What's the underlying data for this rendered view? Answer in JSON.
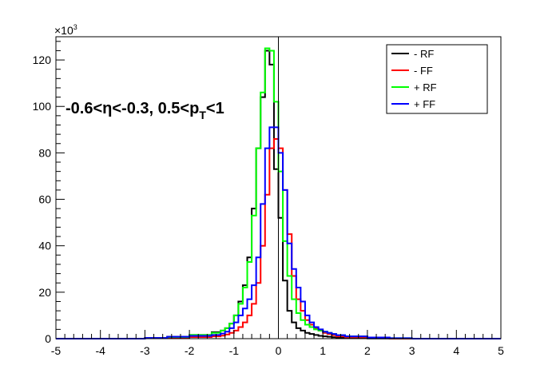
{
  "chart_data": {
    "type": "step",
    "xlim": [
      -5,
      5
    ],
    "ylim": [
      0,
      130
    ],
    "y_multiplier_label": "×10",
    "y_multiplier_exp": "3",
    "xticks": [
      "-5",
      "-4",
      "-3",
      "-2",
      "-1",
      "0",
      "1",
      "2",
      "3",
      "4",
      "5"
    ],
    "xtick_values": [
      -5,
      -4,
      -3,
      -2,
      -1,
      0,
      1,
      2,
      3,
      4,
      5
    ],
    "yticks": [
      "0",
      "20",
      "40",
      "60",
      "80",
      "100",
      "120"
    ],
    "ytick_values": [
      0,
      20,
      40,
      60,
      80,
      100,
      120
    ],
    "grid": false,
    "legend_position": "top-right",
    "vertical_marker_x": 0,
    "annotation": {
      "pre": "-0.6<η<-0.3, 0.5<p",
      "sub": "T",
      "post": "<1"
    },
    "bin_edges": [
      -3.0,
      -2.5,
      -2.0,
      -1.5,
      -1.3,
      -1.2,
      -1.1,
      -1.0,
      -0.9,
      -0.8,
      -0.7,
      -0.6,
      -0.5,
      -0.4,
      -0.3,
      -0.2,
      -0.1,
      0.0,
      0.1,
      0.2,
      0.3,
      0.4,
      0.5,
      0.6,
      0.7,
      0.8,
      0.9,
      1.0,
      1.1,
      1.2,
      1.3,
      1.5,
      2.0,
      2.5,
      3.0
    ],
    "series": [
      {
        "name": "- RF",
        "color": "#000000",
        "values": [
          0.3,
          0.8,
          1.6,
          2.8,
          3.5,
          4.5,
          6.5,
          10,
          16,
          23,
          35,
          56,
          82,
          104,
          124,
          118,
          73,
          52,
          25,
          12,
          7,
          4.5,
          3.5,
          2.5,
          2,
          1.6,
          1.2,
          1.0,
          0.8,
          0.6,
          0.4,
          0.2,
          0.1,
          0.05
        ]
      },
      {
        "name": "- FF",
        "color": "#ff0000",
        "values": [
          0.2,
          0.5,
          0.7,
          1.0,
          1.3,
          1.8,
          2.5,
          3.5,
          5,
          7,
          10,
          15,
          24,
          40,
          62,
          82,
          86,
          82,
          64,
          45,
          27,
          17,
          12,
          8,
          6,
          4.5,
          3.5,
          2.5,
          2,
          1.5,
          1.0,
          0.6,
          0.3,
          0.1
        ]
      },
      {
        "name": "+ RF",
        "color": "#00ff00",
        "values": [
          0.2,
          0.7,
          1.6,
          2.5,
          3.5,
          4.5,
          6.5,
          10,
          15,
          22,
          33,
          53,
          82,
          106,
          125,
          124,
          102,
          72,
          42,
          27,
          17,
          11,
          8,
          6,
          5,
          4,
          3.5,
          3,
          2.5,
          2,
          1.5,
          1.0,
          0.5,
          0.2
        ]
      },
      {
        "name": "+ FF",
        "color": "#0000ff",
        "values": [
          0.3,
          0.8,
          1.2,
          1.6,
          2.2,
          3.0,
          4.5,
          7,
          10,
          13,
          17,
          23,
          35,
          58,
          82,
          91,
          91,
          80,
          64,
          41,
          30,
          22,
          16,
          10,
          7,
          5,
          4,
          3,
          2.5,
          2,
          1.5,
          1.0,
          0.5,
          0.2
        ]
      }
    ]
  }
}
